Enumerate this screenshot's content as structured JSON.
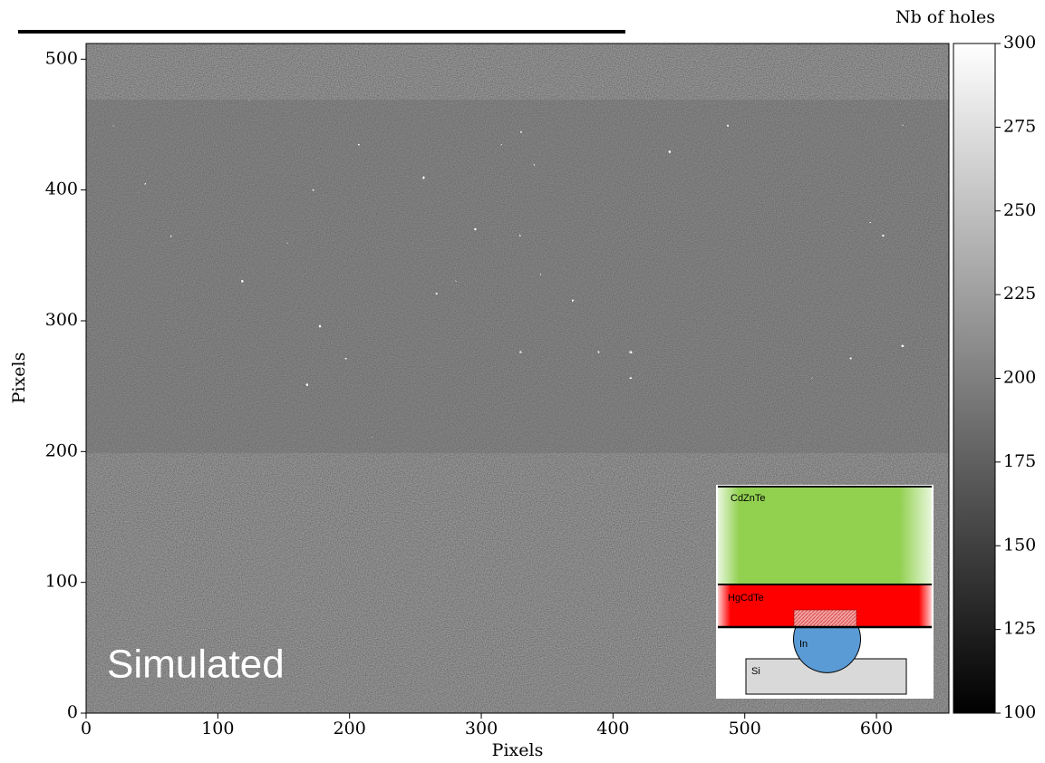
{
  "chart_data": {
    "type": "heatmap",
    "xlabel": "Pixels",
    "ylabel": "Pixels",
    "xlim": [
      0,
      655
    ],
    "ylim": [
      0,
      512
    ],
    "xticks": [
      0,
      100,
      200,
      300,
      400,
      500,
      600
    ],
    "yticks": [
      0,
      100,
      200,
      300,
      400,
      500
    ],
    "colorbar": {
      "label": "Nb of holes",
      "clim": [
        100,
        300
      ],
      "ticks": [
        100,
        125,
        150,
        175,
        200,
        225,
        250,
        275,
        300
      ],
      "colors": [
        "#000000",
        "#ffffff"
      ]
    },
    "annotations": [
      "Simulated"
    ],
    "inset_labels": {
      "top_layer": "CdZnTe",
      "middle_layer": "HgCdTe",
      "bump": "In",
      "substrate": "Si"
    }
  }
}
